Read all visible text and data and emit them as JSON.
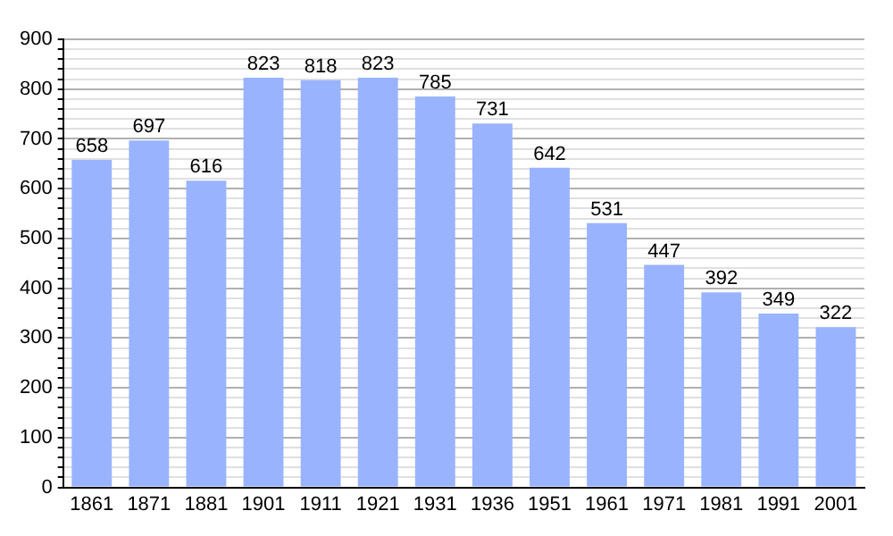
{
  "chart_data": {
    "type": "bar",
    "categories": [
      "1861",
      "1871",
      "1881",
      "1901",
      "1911",
      "1921",
      "1931",
      "1936",
      "1951",
      "1961",
      "1971",
      "1981",
      "1991",
      "2001"
    ],
    "values": [
      658,
      697,
      616,
      823,
      818,
      823,
      785,
      731,
      642,
      531,
      447,
      392,
      349,
      322
    ],
    "color": "#99b3ff",
    "data_labels": true,
    "grid": "y",
    "legend": false,
    "ylim": [
      0,
      900
    ],
    "yticks": [
      0,
      {
        "value": 20,
        "label": null
      },
      {
        "value": 40,
        "label": null
      },
      {
        "value": 60,
        "label": null
      },
      {
        "value": 80,
        "label": null
      },
      100,
      {
        "value": 120,
        "label": null
      },
      {
        "value": 140,
        "label": null
      },
      {
        "value": 160,
        "label": null
      },
      {
        "value": 180,
        "label": null
      },
      200,
      {
        "value": 220,
        "label": null
      },
      {
        "value": 240,
        "label": null
      },
      {
        "value": 260,
        "label": null
      },
      {
        "value": 280,
        "label": null
      },
      300,
      {
        "value": 320,
        "label": null
      },
      {
        "value": 340,
        "label": null
      },
      {
        "value": 360,
        "label": null
      },
      {
        "value": 380,
        "label": null
      },
      400,
      {
        "value": 420,
        "label": null
      },
      {
        "value": 440,
        "label": null
      },
      {
        "value": 460,
        "label": null
      },
      {
        "value": 480,
        "label": null
      },
      500,
      {
        "value": 520,
        "label": null
      },
      {
        "value": 540,
        "label": null
      },
      {
        "value": 560,
        "label": null
      },
      {
        "value": 580,
        "label": null
      },
      600,
      {
        "value": 620,
        "label": null
      },
      {
        "value": 640,
        "label": null
      },
      {
        "value": 660,
        "label": null
      },
      {
        "value": 680,
        "label": null
      },
      700,
      {
        "value": 720,
        "label": null
      },
      {
        "value": 740,
        "label": null
      },
      {
        "value": 760,
        "label": null
      },
      {
        "value": 780,
        "label": null
      },
      800,
      {
        "value": 820,
        "label": null
      },
      {
        "value": 840,
        "label": null
      },
      {
        "value": 860,
        "label": null
      },
      {
        "value": 880,
        "label": null
      },
      900
    ]
  }
}
